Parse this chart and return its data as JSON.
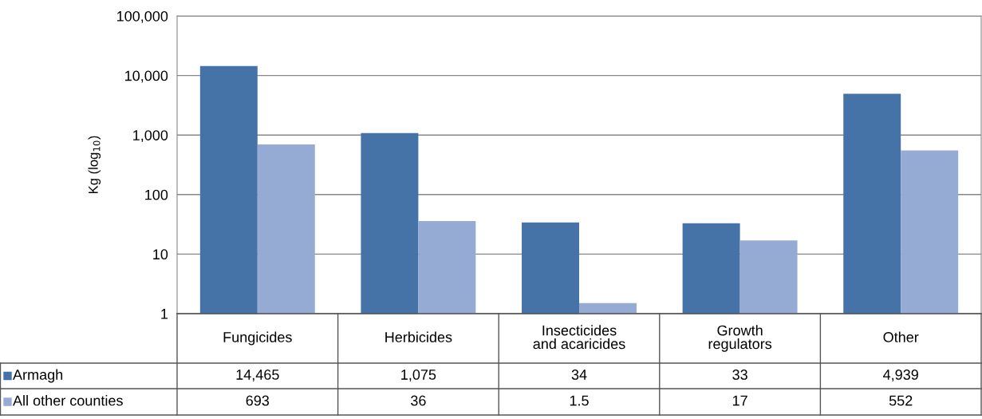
{
  "chart_data": {
    "type": "bar",
    "ylabel": "Kg (log$_{10}$)",
    "log": "y",
    "categories": [
      "Fungicides",
      "Herbicides",
      "Insecticides\nand acaricides",
      "Growth\nregulators",
      "Other"
    ],
    "series": [
      {
        "name": "Armagh",
        "color": "#4572a7",
        "values": [
          14465,
          1075,
          34,
          33,
          4939
        ],
        "value_labels": [
          "14,465",
          "1,075",
          "34",
          "33",
          "4,939"
        ]
      },
      {
        "name": "All other counties",
        "color": "#95abd3",
        "values": [
          693,
          36,
          1.5,
          17,
          552
        ],
        "value_labels": [
          "693",
          "36",
          "1.5",
          "17",
          "552"
        ]
      }
    ],
    "ylim": [
      1,
      100000
    ],
    "yticks": [
      1,
      10,
      100,
      {
        "value": 1000,
        "label": "1,000"
      },
      {
        "value": 10000,
        "label": "10,000"
      },
      {
        "value": 100000,
        "label": "100,000"
      }
    ],
    "grid": "y",
    "legend": "bottom left"
  }
}
